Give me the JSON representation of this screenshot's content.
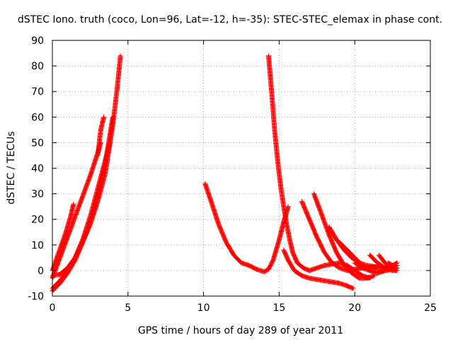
{
  "chart_data": {
    "type": "scatter",
    "title": "dSTEC Iono. truth (coco, Lon=96, Lat=-12, h=-35): STEC-STEC_elemax in phase cont.",
    "xlabel": "GPS time / hours of day 289 of year 2011",
    "ylabel": "dSTEC  / TECUs",
    "xlim": [
      0,
      25
    ],
    "ylim": [
      -10,
      90
    ],
    "xticks": [
      0,
      5,
      10,
      15,
      20,
      25
    ],
    "yticks": [
      -10,
      0,
      10,
      20,
      30,
      40,
      50,
      60,
      70,
      80,
      90
    ],
    "grid": true,
    "marker": "+",
    "color": "#ff0000",
    "series": [
      {
        "x": [
          0.0,
          0.3,
          0.6,
          0.9,
          1.2,
          1.4
        ],
        "y": [
          0,
          5,
          10,
          15,
          21,
          26
        ]
      },
      {
        "x": [
          0.0,
          0.5,
          1.0,
          1.5,
          2.0,
          2.5,
          3.0,
          3.2
        ],
        "y": [
          -3,
          5,
          13,
          21,
          29,
          37,
          46,
          50
        ]
      },
      {
        "x": [
          3.0,
          3.2,
          3.4
        ],
        "y": [
          45,
          55,
          60
        ]
      },
      {
        "x": [
          0.0,
          0.5,
          1.0,
          1.5,
          2.0,
          2.5,
          3.0,
          3.5,
          3.8
        ],
        "y": [
          -2,
          -1.5,
          1,
          5,
          12,
          21,
          32,
          43,
          50
        ]
      },
      {
        "x": [
          0.0,
          0.5,
          1.0,
          1.5,
          2.0,
          2.5,
          3.0,
          3.5,
          4.0,
          4.3,
          4.5
        ],
        "y": [
          -7,
          -4,
          0,
          5,
          11,
          18,
          27,
          38,
          57,
          72,
          84
        ]
      },
      {
        "x": [
          0.0,
          0.5,
          1.0,
          1.5,
          2.0,
          2.5,
          3.0,
          3.5,
          4.0
        ],
        "y": [
          -8,
          -5,
          -1,
          4,
          11,
          19,
          29,
          42,
          60
        ]
      },
      {
        "x": [
          10.1,
          10.5,
          11.0,
          11.5,
          12.0,
          12.5,
          13.0,
          13.5,
          14.0,
          14.3,
          14.6,
          15.0,
          15.3,
          15.6
        ],
        "y": [
          34,
          27,
          18,
          11,
          6,
          3,
          2,
          0.5,
          -0.5,
          0.5,
          4,
          12,
          19,
          25
        ]
      },
      {
        "x": [
          14.3,
          14.5,
          14.7,
          14.9,
          15.1,
          15.3,
          15.5,
          15.7,
          15.9,
          16.2,
          16.6,
          17.0,
          17.5,
          18.0,
          18.5,
          19.0,
          19.5,
          20.0,
          20.5,
          21.0
        ],
        "y": [
          84,
          70,
          55,
          43,
          33,
          25,
          18,
          12,
          7,
          3,
          1,
          0,
          1,
          2,
          2.5,
          3,
          2,
          0,
          -2,
          -3
        ]
      },
      {
        "x": [
          15.3,
          15.6,
          16.0,
          16.5,
          17.0,
          17.5,
          18.0,
          18.5,
          19.0,
          19.5,
          19.9
        ],
        "y": [
          8,
          4,
          0,
          -2,
          -3,
          -3.5,
          -4,
          -4.5,
          -5,
          -6,
          -7
        ]
      },
      {
        "x": [
          16.5,
          17.0,
          17.5,
          18.0,
          18.5,
          19.0,
          19.5,
          20.0,
          20.5,
          21.0,
          21.5
        ],
        "y": [
          27,
          20,
          13,
          7,
          3,
          1,
          0,
          0.5,
          1,
          1.2,
          1.5
        ]
      },
      {
        "x": [
          17.3,
          17.8,
          18.3,
          18.8,
          19.3,
          19.8,
          20.3,
          20.8,
          21.3
        ],
        "y": [
          30,
          22,
          14,
          7,
          2,
          -1,
          -3,
          -3,
          -2
        ]
      },
      {
        "x": [
          18.3,
          18.8,
          19.3,
          19.8,
          20.3,
          20.8,
          21.3,
          21.8,
          22.3,
          22.8
        ],
        "y": [
          17,
          12,
          8,
          5,
          3,
          2,
          1.5,
          1,
          1,
          1
        ]
      },
      {
        "x": [
          19.0,
          19.5,
          20.0,
          20.5,
          21.0,
          21.5,
          22.0,
          22.5,
          22.8
        ],
        "y": [
          11,
          8,
          5,
          2,
          0,
          -1,
          0,
          1,
          2
        ]
      },
      {
        "x": [
          20.0,
          20.5,
          21.0,
          21.5,
          22.0,
          22.5,
          22.8
        ],
        "y": [
          3,
          1,
          0,
          -0.5,
          0,
          0.5,
          1
        ]
      },
      {
        "x": [
          21.0,
          21.5,
          22.0,
          22.5,
          22.8
        ],
        "y": [
          6,
          3,
          1,
          0,
          0
        ]
      },
      {
        "x": [
          21.6,
          22.0,
          22.4,
          22.8
        ],
        "y": [
          6,
          3,
          1,
          0
        ]
      },
      {
        "x": [
          22.2,
          22.5,
          22.8
        ],
        "y": [
          3,
          2,
          3
        ]
      }
    ]
  }
}
